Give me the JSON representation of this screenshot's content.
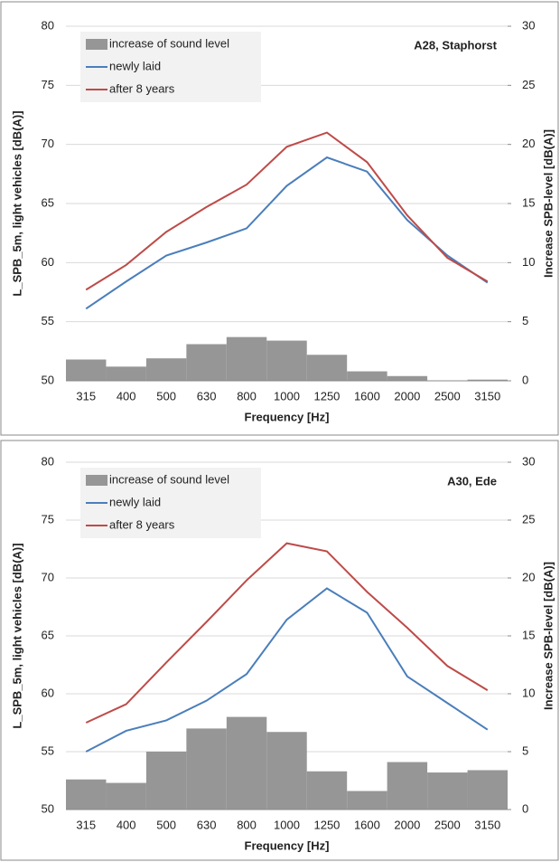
{
  "chart_data": [
    {
      "type": "bar-line",
      "annotation": "A28, Staphorst",
      "x_label": "Frequency [Hz]",
      "y_label": "L_SPB_5m, light vehicles [dB(A)]",
      "y2_label": "Increase SPB-level [dB(A)]",
      "categories": [
        "315",
        "400",
        "500",
        "630",
        "800",
        "1000",
        "1250",
        "1600",
        "2000",
        "2500",
        "3150"
      ],
      "series": [
        {
          "name": "increase of sound level",
          "color": "#969696",
          "axis": "y2",
          "type": "bar",
          "values": [
            1.8,
            1.2,
            1.9,
            3.1,
            3.7,
            3.4,
            2.2,
            0.8,
            0.4,
            0.0,
            0.1
          ]
        },
        {
          "name": "newly laid",
          "color": "#4a7ebb",
          "type": "line",
          "values": [
            56.1,
            58.4,
            60.6,
            61.7,
            62.9,
            66.5,
            68.9,
            67.7,
            63.6,
            60.6,
            58.3
          ]
        },
        {
          "name": "after 8 years",
          "color": "#be4b48",
          "type": "line",
          "values": [
            57.7,
            59.8,
            62.6,
            64.7,
            66.6,
            69.8,
            71.0,
            68.5,
            64.0,
            60.4,
            58.4
          ]
        }
      ],
      "ylim": [
        50,
        80
      ],
      "yticks": [
        50,
        55,
        60,
        65,
        70,
        75,
        80
      ],
      "y2lim": [
        0,
        30
      ],
      "y2ticks": [
        0,
        5,
        10,
        15,
        20,
        25,
        30
      ],
      "grid": true,
      "legend": "upper left"
    },
    {
      "type": "bar-line",
      "annotation": "A30, Ede",
      "x_label": "Frequency [Hz]",
      "y_label": "L_SPB_5m, light vehicles [dB(A)]",
      "y2_label": "Increase SPB-level [dB(A)]",
      "categories": [
        "315",
        "400",
        "500",
        "630",
        "800",
        "1000",
        "1250",
        "1600",
        "2000",
        "2500",
        "3150"
      ],
      "series": [
        {
          "name": "increase of sound level",
          "color": "#969696",
          "axis": "y2",
          "type": "bar",
          "values": [
            2.6,
            2.3,
            5.0,
            7.0,
            8.0,
            6.7,
            3.3,
            1.6,
            4.1,
            3.2,
            3.4
          ]
        },
        {
          "name": "newly laid",
          "color": "#4a7ebb",
          "type": "line",
          "values": [
            55.0,
            56.8,
            57.7,
            59.4,
            61.7,
            66.4,
            69.1,
            67.0,
            61.5,
            59.2,
            56.9
          ]
        },
        {
          "name": "after 8 years",
          "color": "#be4b48",
          "type": "line",
          "values": [
            57.5,
            59.1,
            62.7,
            66.2,
            69.8,
            73.0,
            72.3,
            68.8,
            65.7,
            62.4,
            60.3
          ]
        }
      ],
      "ylim": [
        50,
        80
      ],
      "yticks": [
        50,
        55,
        60,
        65,
        70,
        75,
        80
      ],
      "y2lim": [
        0,
        30
      ],
      "y2ticks": [
        0,
        5,
        10,
        15,
        20,
        25,
        30
      ],
      "grid": true,
      "legend": "upper left"
    }
  ]
}
